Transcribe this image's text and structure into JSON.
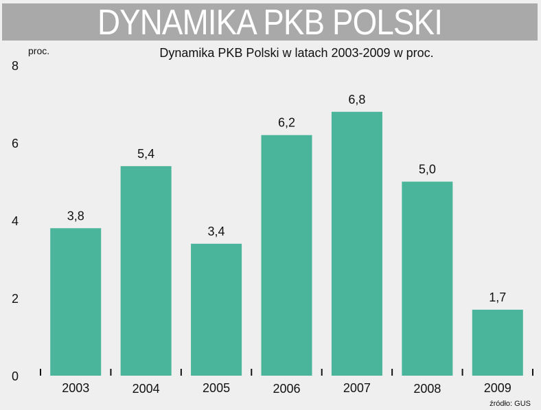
{
  "banner": {
    "title": "DYNAMIKA PKB POLSKI"
  },
  "chart_data": {
    "type": "bar",
    "title": "Dynamika PKB Polski w latach 2003-2009 w proc.",
    "ylabel": "proc.",
    "categories": [
      "2003",
      "2004",
      "2005",
      "2006",
      "2007",
      "2008",
      "2009"
    ],
    "values": [
      3.8,
      5.4,
      3.4,
      6.2,
      6.8,
      5.0,
      1.7
    ],
    "value_labels": [
      "3,8",
      "5,4",
      "3,4",
      "6,2",
      "6,8",
      "5,0",
      "1,7"
    ],
    "ylim": [
      0,
      8
    ],
    "yticks": [
      0,
      2,
      4,
      6,
      8
    ],
    "grid": false,
    "bar_color": "#4ab59a",
    "source": "źródło: GUS"
  }
}
